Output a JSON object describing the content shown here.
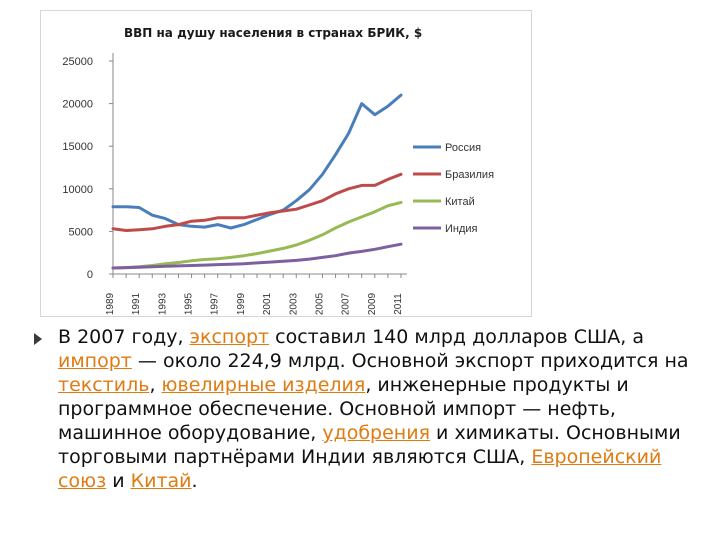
{
  "chart_data": {
    "type": "line",
    "title": "ВВП на душу населения в странах БРИК, $",
    "x": [
      1989,
      1990,
      1991,
      1992,
      1993,
      1994,
      1995,
      1996,
      1997,
      1998,
      1999,
      2000,
      2001,
      2002,
      2003,
      2004,
      2005,
      2006,
      2007,
      2008,
      2009,
      2010,
      2011
    ],
    "x_tick_labels": [
      "1989",
      "1991",
      "1993",
      "1995",
      "1997",
      "1999",
      "2001",
      "2003",
      "2005",
      "2007",
      "2009",
      "2011"
    ],
    "ylim": [
      0,
      25000
    ],
    "y_ticks": [
      "0",
      "5000",
      "10000",
      "15000",
      "20000",
      "25000"
    ],
    "legend_position": "right",
    "grid": false,
    "series": [
      {
        "name": "Россия",
        "color": "#4a7ebb",
        "values": [
          7900,
          7900,
          7800,
          6900,
          6500,
          5800,
          5600,
          5500,
          5800,
          5400,
          5800,
          6400,
          7000,
          7500,
          8600,
          9900,
          11700,
          14000,
          16500,
          20000,
          18700,
          19700,
          21000
        ]
      },
      {
        "name": "Бразилия",
        "color": "#be4b48",
        "values": [
          5300,
          5100,
          5200,
          5300,
          5600,
          5800,
          6200,
          6300,
          6600,
          6600,
          6600,
          6900,
          7200,
          7400,
          7600,
          8100,
          8600,
          9400,
          10000,
          10400,
          10400,
          11100,
          11700
        ]
      },
      {
        "name": "Китай",
        "color": "#98b954",
        "values": [
          700,
          750,
          850,
          1000,
          1200,
          1350,
          1550,
          1700,
          1800,
          1950,
          2150,
          2400,
          2700,
          3000,
          3400,
          3950,
          4600,
          5400,
          6100,
          6700,
          7300,
          8000,
          8400
        ]
      },
      {
        "name": "Индия",
        "color": "#7d60a0",
        "values": [
          700,
          750,
          800,
          850,
          900,
          950,
          1000,
          1050,
          1100,
          1150,
          1200,
          1300,
          1400,
          1500,
          1600,
          1750,
          1950,
          2150,
          2450,
          2650,
          2900,
          3200,
          3500
        ]
      }
    ]
  },
  "paragraph": {
    "p1": "В 2007 году, ",
    "link_export": "экспорт",
    "p2": " составил 140 млрд долларов США, а ",
    "link_import": "импорт",
    "p3": " — около 224,9 млрд. Основной экспорт приходится на ",
    "link_textile": "текстиль",
    "p4": ", ",
    "link_jewelry": "ювелирные изделия",
    "p5": ", инженерные продукты и программное обеспечение. Основной импорт — нефть, машинное оборудование, ",
    "link_fertilizers": "удобрения",
    "p6": " и химикаты. Основными торговыми партнёрами Индии являются США, ",
    "link_eu": "Европейский союз",
    "p7": " и ",
    "link_china": "Китай",
    "p8": "."
  }
}
